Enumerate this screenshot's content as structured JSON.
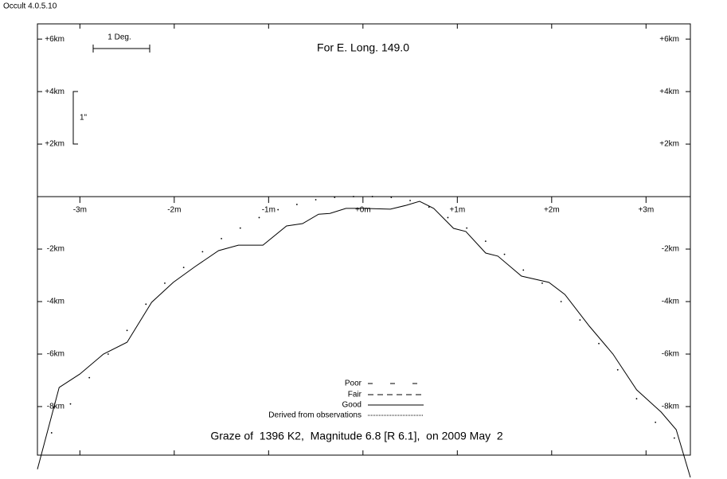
{
  "app_title": "Occult 4.0.5.10",
  "chart_data": {
    "type": "line",
    "title": "For E. Long. 149.0",
    "caption": "Graze of  1396 K2,  Magnitude 6.8 [R 6.1],  on 2009 May  2",
    "scale_bar_label": "1 Deg.",
    "scale_bracket_label": "1\"",
    "legend_entries": [
      "Poor",
      "Fair",
      "Good",
      "Derived from observations"
    ],
    "xlim": [
      -3.45,
      3.47
    ],
    "ylim": [
      -9.85,
      6.58
    ],
    "xticks": [
      {
        "value": -3,
        "label": "-3m"
      },
      {
        "value": -2,
        "label": "-2m"
      },
      {
        "value": -1,
        "label": "-1m"
      },
      {
        "value": 0,
        "label": "+0m"
      },
      {
        "value": 1,
        "label": "+1m"
      },
      {
        "value": 2,
        "label": "+2m"
      },
      {
        "value": 3,
        "label": "+3m"
      }
    ],
    "yticks": [
      {
        "value": 6,
        "label": "+6km"
      },
      {
        "value": 4,
        "label": "+4km"
      },
      {
        "value": 2,
        "label": "+2km"
      },
      {
        "value": -2,
        "label": "-2km"
      },
      {
        "value": -4,
        "label": "-4km"
      },
      {
        "value": -6,
        "label": "-6km"
      },
      {
        "value": -8,
        "label": "-8km"
      }
    ],
    "series": [
      {
        "style": "solid",
        "color": "#000000",
        "x": [
          -3.45,
          -3.22,
          -3.0,
          -2.75,
          -2.5,
          -2.24,
          -2.01,
          -1.78,
          -1.53,
          -1.32,
          -1.06,
          -0.81,
          -0.64,
          -0.47,
          -0.35,
          -0.18,
          0,
          0.29,
          0.46,
          0.6,
          0.75,
          0.96,
          1.09,
          1.3,
          1.43,
          1.68,
          1.97,
          2.14,
          2.4,
          2.65,
          2.9,
          3.16,
          3.32,
          3.47
        ],
        "values": [
          -10.39,
          -7.27,
          -6.76,
          -6.0,
          -5.55,
          -4.03,
          -3.27,
          -2.67,
          -2.06,
          -1.85,
          -1.85,
          -1.12,
          -1.03,
          -0.67,
          -0.64,
          -0.45,
          -0.45,
          -0.48,
          -0.33,
          -0.18,
          -0.45,
          -1.21,
          -1.33,
          -2.15,
          -2.27,
          -3.03,
          -3.27,
          -3.73,
          -4.94,
          -6.0,
          -7.36,
          -8.21,
          -8.88,
          -10.7
        ]
      },
      {
        "style": "dots",
        "color": "#000000",
        "x": [
          -3.3,
          -3.1,
          -2.9,
          -2.7,
          -2.5,
          -2.3,
          -2.1,
          -1.9,
          -1.7,
          -1.5,
          -1.3,
          -1.1,
          -0.9,
          -0.7,
          -0.5,
          -0.3,
          -0.1,
          0.1,
          0.3,
          0.5,
          0.7,
          0.9,
          1.1,
          1.3,
          1.5,
          1.7,
          1.9,
          2.1,
          2.3,
          2.5,
          2.7,
          2.9,
          3.1,
          3.3
        ],
        "values": [
          -9.0,
          -7.9,
          -6.9,
          -6.0,
          -5.1,
          -4.1,
          -3.3,
          -2.7,
          -2.1,
          -1.6,
          -1.2,
          -0.8,
          -0.5,
          -0.3,
          -0.12,
          -0.03,
          0,
          0,
          -0.03,
          -0.15,
          -0.4,
          -0.8,
          -1.2,
          -1.7,
          -2.2,
          -2.8,
          -3.3,
          -4.0,
          -4.7,
          -5.6,
          -6.6,
          -7.7,
          -8.6,
          -9.2
        ]
      }
    ]
  }
}
